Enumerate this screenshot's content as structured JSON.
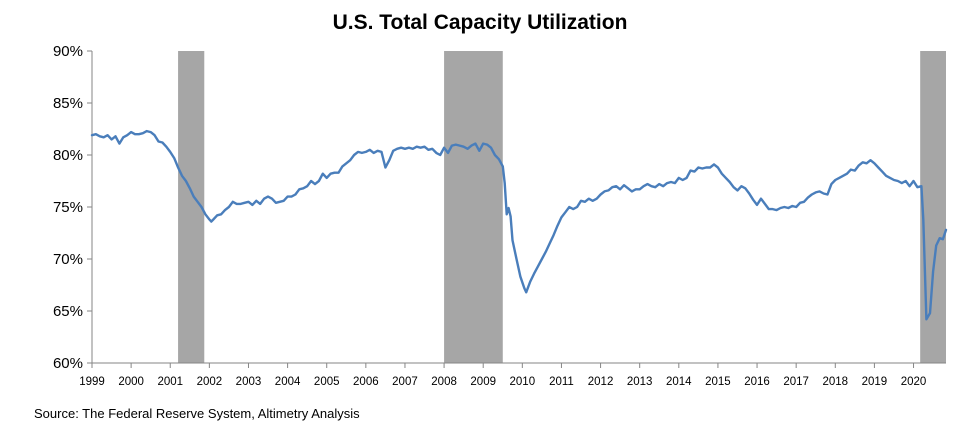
{
  "chart_data": {
    "type": "line",
    "title": "U.S. Total Capacity Utilization",
    "source": "Source: The Federal Reserve System, Altimetry Analysis",
    "xlabel": "",
    "ylabel": "",
    "xlim": [
      1999.0,
      2020.83
    ],
    "ylim": [
      60,
      90
    ],
    "y_ticks": [
      "60%",
      "65%",
      "70%",
      "75%",
      "80%",
      "85%",
      "90%"
    ],
    "y_tick_values": [
      60,
      65,
      70,
      75,
      80,
      85,
      90
    ],
    "x_ticks": [
      "1999",
      "2000",
      "2001",
      "2002",
      "2003",
      "2004",
      "2005",
      "2006",
      "2007",
      "2008",
      "2009",
      "2010",
      "2011",
      "2012",
      "2013",
      "2014",
      "2015",
      "2016",
      "2017",
      "2018",
      "2019",
      "2020"
    ],
    "x_tick_values": [
      1999,
      2000,
      2001,
      2002,
      2003,
      2004,
      2005,
      2006,
      2007,
      2008,
      2009,
      2010,
      2011,
      2012,
      2013,
      2014,
      2015,
      2016,
      2017,
      2018,
      2019,
      2020
    ],
    "grid": false,
    "legend": "none",
    "recessions": [
      [
        2001.2,
        2001.87
      ],
      [
        2008.0,
        2009.5
      ],
      [
        2020.17,
        2020.83
      ]
    ],
    "colors": {
      "line": "#4a7ebb",
      "recession": "#a6a6a6",
      "axis": "#868686"
    },
    "series": [
      {
        "name": "",
        "points": [
          [
            1999.0,
            81.9
          ],
          [
            1999.1,
            82.0
          ],
          [
            1999.2,
            81.8
          ],
          [
            1999.3,
            81.7
          ],
          [
            1999.4,
            81.9
          ],
          [
            1999.5,
            81.5
          ],
          [
            1999.6,
            81.8
          ],
          [
            1999.7,
            81.1
          ],
          [
            1999.8,
            81.7
          ],
          [
            1999.9,
            81.9
          ],
          [
            2000.0,
            82.2
          ],
          [
            2000.1,
            82.0
          ],
          [
            2000.2,
            82.0
          ],
          [
            2000.3,
            82.1
          ],
          [
            2000.4,
            82.3
          ],
          [
            2000.5,
            82.2
          ],
          [
            2000.6,
            81.9
          ],
          [
            2000.7,
            81.3
          ],
          [
            2000.8,
            81.2
          ],
          [
            2000.9,
            80.8
          ],
          [
            2001.0,
            80.3
          ],
          [
            2001.1,
            79.7
          ],
          [
            2001.2,
            78.8
          ],
          [
            2001.3,
            78.0
          ],
          [
            2001.4,
            77.5
          ],
          [
            2001.5,
            76.8
          ],
          [
            2001.6,
            76.0
          ],
          [
            2001.7,
            75.5
          ],
          [
            2001.8,
            75.0
          ],
          [
            2001.9,
            74.3
          ],
          [
            2002.0,
            73.8
          ],
          [
            2002.05,
            73.6
          ],
          [
            2002.1,
            73.8
          ],
          [
            2002.2,
            74.2
          ],
          [
            2002.3,
            74.3
          ],
          [
            2002.4,
            74.7
          ],
          [
            2002.5,
            75.0
          ],
          [
            2002.6,
            75.5
          ],
          [
            2002.7,
            75.3
          ],
          [
            2002.8,
            75.3
          ],
          [
            2002.9,
            75.4
          ],
          [
            2003.0,
            75.5
          ],
          [
            2003.1,
            75.2
          ],
          [
            2003.2,
            75.6
          ],
          [
            2003.3,
            75.3
          ],
          [
            2003.4,
            75.8
          ],
          [
            2003.5,
            76.0
          ],
          [
            2003.6,
            75.8
          ],
          [
            2003.7,
            75.4
          ],
          [
            2003.8,
            75.5
          ],
          [
            2003.9,
            75.6
          ],
          [
            2004.0,
            76.0
          ],
          [
            2004.1,
            76.0
          ],
          [
            2004.2,
            76.2
          ],
          [
            2004.3,
            76.7
          ],
          [
            2004.4,
            76.8
          ],
          [
            2004.5,
            77.0
          ],
          [
            2004.6,
            77.5
          ],
          [
            2004.7,
            77.2
          ],
          [
            2004.8,
            77.5
          ],
          [
            2004.9,
            78.2
          ],
          [
            2005.0,
            77.8
          ],
          [
            2005.1,
            78.2
          ],
          [
            2005.2,
            78.3
          ],
          [
            2005.3,
            78.3
          ],
          [
            2005.4,
            78.9
          ],
          [
            2005.5,
            79.2
          ],
          [
            2005.6,
            79.5
          ],
          [
            2005.7,
            80.0
          ],
          [
            2005.8,
            80.3
          ],
          [
            2005.9,
            80.2
          ],
          [
            2006.0,
            80.3
          ],
          [
            2006.1,
            80.5
          ],
          [
            2006.2,
            80.2
          ],
          [
            2006.3,
            80.4
          ],
          [
            2006.4,
            80.3
          ],
          [
            2006.5,
            78.8
          ],
          [
            2006.6,
            79.5
          ],
          [
            2006.7,
            80.4
          ],
          [
            2006.8,
            80.6
          ],
          [
            2006.9,
            80.7
          ],
          [
            2007.0,
            80.6
          ],
          [
            2007.1,
            80.7
          ],
          [
            2007.2,
            80.6
          ],
          [
            2007.3,
            80.8
          ],
          [
            2007.4,
            80.7
          ],
          [
            2007.5,
            80.8
          ],
          [
            2007.6,
            80.5
          ],
          [
            2007.7,
            80.6
          ],
          [
            2007.8,
            80.2
          ],
          [
            2007.9,
            80.0
          ],
          [
            2008.0,
            80.7
          ],
          [
            2008.1,
            80.2
          ],
          [
            2008.2,
            80.9
          ],
          [
            2008.3,
            81.0
          ],
          [
            2008.4,
            80.9
          ],
          [
            2008.5,
            80.8
          ],
          [
            2008.6,
            80.6
          ],
          [
            2008.7,
            80.9
          ],
          [
            2008.8,
            81.1
          ],
          [
            2008.9,
            80.4
          ],
          [
            2009.0,
            81.1
          ],
          [
            2009.1,
            81.0
          ],
          [
            2009.2,
            80.7
          ],
          [
            2009.3,
            80.0
          ],
          [
            2009.4,
            79.6
          ],
          [
            2009.5,
            78.9
          ],
          [
            2009.55,
            77.3
          ],
          [
            2009.6,
            74.3
          ],
          [
            2009.65,
            74.9
          ],
          [
            2009.7,
            74.1
          ],
          [
            2009.75,
            71.8
          ],
          [
            2009.85,
            70.0
          ],
          [
            2009.95,
            68.3
          ],
          [
            2010.05,
            67.2
          ],
          [
            2010.1,
            66.8
          ],
          [
            2010.2,
            67.8
          ],
          [
            2010.3,
            68.6
          ],
          [
            2010.4,
            69.3
          ],
          [
            2010.5,
            70.0
          ],
          [
            2010.6,
            70.7
          ],
          [
            2010.7,
            71.5
          ],
          [
            2010.8,
            72.3
          ],
          [
            2010.9,
            73.2
          ],
          [
            2011.0,
            74.0
          ],
          [
            2011.1,
            74.5
          ],
          [
            2011.2,
            75.0
          ],
          [
            2011.3,
            74.8
          ],
          [
            2011.4,
            75.0
          ],
          [
            2011.5,
            75.6
          ],
          [
            2011.6,
            75.5
          ],
          [
            2011.7,
            75.8
          ],
          [
            2011.8,
            75.6
          ],
          [
            2011.9,
            75.8
          ],
          [
            2012.0,
            76.2
          ],
          [
            2012.1,
            76.5
          ],
          [
            2012.2,
            76.6
          ],
          [
            2012.3,
            76.9
          ],
          [
            2012.4,
            77.0
          ],
          [
            2012.5,
            76.7
          ],
          [
            2012.6,
            77.1
          ],
          [
            2012.7,
            76.8
          ],
          [
            2012.8,
            76.5
          ],
          [
            2012.9,
            76.7
          ],
          [
            2013.0,
            76.7
          ],
          [
            2013.1,
            77.0
          ],
          [
            2013.2,
            77.2
          ],
          [
            2013.3,
            77.0
          ],
          [
            2013.4,
            76.9
          ],
          [
            2013.5,
            77.2
          ],
          [
            2013.6,
            77.0
          ],
          [
            2013.7,
            77.3
          ],
          [
            2013.8,
            77.4
          ],
          [
            2013.9,
            77.3
          ],
          [
            2014.0,
            77.8
          ],
          [
            2014.1,
            77.6
          ],
          [
            2014.2,
            77.8
          ],
          [
            2014.3,
            78.5
          ],
          [
            2014.4,
            78.4
          ],
          [
            2014.5,
            78.8
          ],
          [
            2014.6,
            78.7
          ],
          [
            2014.7,
            78.8
          ],
          [
            2014.8,
            78.8
          ],
          [
            2014.9,
            79.1
          ],
          [
            2015.0,
            78.8
          ],
          [
            2015.1,
            78.2
          ],
          [
            2015.2,
            77.8
          ],
          [
            2015.3,
            77.4
          ],
          [
            2015.4,
            76.9
          ],
          [
            2015.5,
            76.6
          ],
          [
            2015.6,
            77.0
          ],
          [
            2015.7,
            76.8
          ],
          [
            2015.8,
            76.3
          ],
          [
            2015.9,
            75.7
          ],
          [
            2016.0,
            75.2
          ],
          [
            2016.1,
            75.8
          ],
          [
            2016.2,
            75.3
          ],
          [
            2016.3,
            74.8
          ],
          [
            2016.4,
            74.8
          ],
          [
            2016.5,
            74.7
          ],
          [
            2016.6,
            74.9
          ],
          [
            2016.7,
            75.0
          ],
          [
            2016.8,
            74.9
          ],
          [
            2016.9,
            75.1
          ],
          [
            2017.0,
            75.0
          ],
          [
            2017.1,
            75.4
          ],
          [
            2017.2,
            75.5
          ],
          [
            2017.3,
            75.9
          ],
          [
            2017.4,
            76.2
          ],
          [
            2017.5,
            76.4
          ],
          [
            2017.6,
            76.5
          ],
          [
            2017.7,
            76.3
          ],
          [
            2017.8,
            76.2
          ],
          [
            2017.9,
            77.2
          ],
          [
            2018.0,
            77.6
          ],
          [
            2018.1,
            77.8
          ],
          [
            2018.2,
            78.0
          ],
          [
            2018.3,
            78.2
          ],
          [
            2018.4,
            78.6
          ],
          [
            2018.5,
            78.5
          ],
          [
            2018.6,
            79.0
          ],
          [
            2018.7,
            79.3
          ],
          [
            2018.8,
            79.2
          ],
          [
            2018.9,
            79.5
          ],
          [
            2019.0,
            79.2
          ],
          [
            2019.1,
            78.8
          ],
          [
            2019.2,
            78.4
          ],
          [
            2019.3,
            78.0
          ],
          [
            2019.4,
            77.8
          ],
          [
            2019.5,
            77.6
          ],
          [
            2019.6,
            77.5
          ],
          [
            2019.7,
            77.3
          ],
          [
            2019.8,
            77.5
          ],
          [
            2019.9,
            77.0
          ],
          [
            2020.0,
            77.5
          ],
          [
            2020.1,
            76.9
          ],
          [
            2020.2,
            77.0
          ],
          [
            2020.25,
            73.8
          ],
          [
            2020.33,
            64.2
          ],
          [
            2020.42,
            64.8
          ],
          [
            2020.5,
            68.8
          ],
          [
            2020.58,
            71.3
          ],
          [
            2020.67,
            72.0
          ],
          [
            2020.75,
            71.9
          ],
          [
            2020.83,
            72.8
          ]
        ]
      }
    ]
  }
}
